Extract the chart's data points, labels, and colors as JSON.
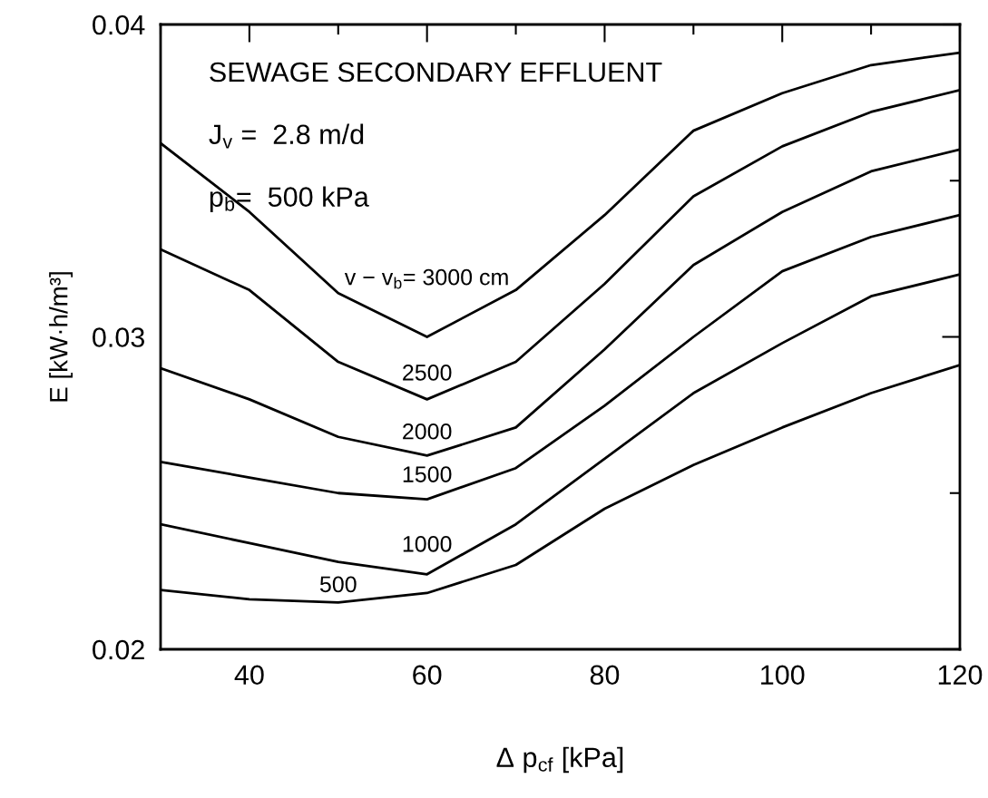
{
  "chart_data": {
    "type": "line",
    "xlabel": "Δ p$_{cf}$ [kPa]",
    "ylabel": "E [kW·h/m³]",
    "x": [
      30,
      40,
      50,
      60,
      70,
      80,
      90,
      100,
      110,
      120
    ],
    "series": [
      {
        "name": "v − v$_{b}$= 3000 cm",
        "color": "#000000",
        "values": [
          0.0362,
          0.034,
          0.0314,
          0.03,
          0.0315,
          0.0339,
          0.0366,
          0.0378,
          0.0387,
          0.0391
        ]
      },
      {
        "name": "2500",
        "color": "#000000",
        "values": [
          0.0328,
          0.0315,
          0.0292,
          0.028,
          0.0292,
          0.0317,
          0.0345,
          0.0361,
          0.0372,
          0.0379
        ]
      },
      {
        "name": "2000",
        "color": "#000000",
        "values": [
          0.029,
          0.028,
          0.0268,
          0.0262,
          0.0271,
          0.0296,
          0.0323,
          0.034,
          0.0353,
          0.036
        ]
      },
      {
        "name": "1500",
        "color": "#000000",
        "values": [
          0.026,
          0.0255,
          0.025,
          0.0248,
          0.0258,
          0.0278,
          0.03,
          0.0321,
          0.0332,
          0.0339
        ]
      },
      {
        "name": "1000",
        "color": "#000000",
        "values": [
          0.024,
          0.0234,
          0.0228,
          0.0224,
          0.024,
          0.0261,
          0.0282,
          0.0298,
          0.0313,
          0.032
        ]
      },
      {
        "name": "500",
        "color": "#000000",
        "values": [
          0.0219,
          0.0216,
          0.0215,
          0.0218,
          0.0227,
          0.0245,
          0.0259,
          0.0271,
          0.0282,
          0.0291
        ]
      }
    ],
    "xlim": [
      30,
      120
    ],
    "xticks": [
      {
        "value": 30,
        "label": null
      },
      40,
      {
        "value": 50,
        "label": null
      },
      60,
      {
        "value": 70,
        "label": null
      },
      80,
      {
        "value": 90,
        "label": null
      },
      100,
      {
        "value": 110,
        "label": null
      },
      120
    ],
    "ylim": [
      0.02,
      0.04
    ],
    "yticks": [
      0.02,
      {
        "value": 0.025,
        "label": null
      },
      0.03,
      {
        "value": 0.035,
        "label": null
      },
      0.04
    ],
    "line_style": "solid",
    "marker": "none",
    "grid": false,
    "legend": false,
    "annotations": [
      "SEWAGE SECONDARY EFFLUENT",
      "J$_{v}$ =  2.8 m/d",
      "p$_{b}$=  500 kPa"
    ]
  }
}
